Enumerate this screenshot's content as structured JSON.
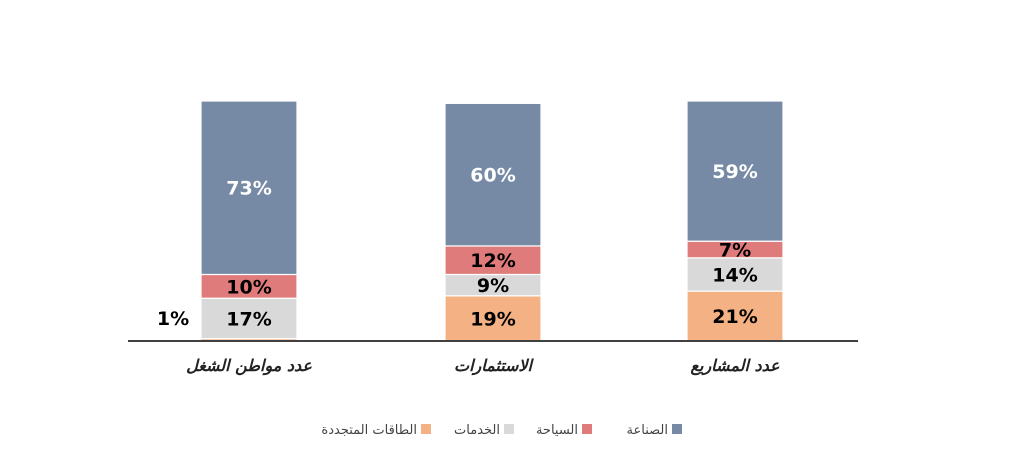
{
  "chart_data": {
    "type": "bar",
    "stacked": true,
    "percent": true,
    "direction": "rtl",
    "categories": [
      "عدد المشاريع",
      "الاستثمارات",
      "عدد مواطن الشغل"
    ],
    "series": [
      {
        "name": "الطاقات المتجددة",
        "color": "#F4B183",
        "label_color": "#000000",
        "values": [
          21,
          19,
          1
        ],
        "labels": [
          "21%",
          "19%",
          "1%"
        ]
      },
      {
        "name": "الخدمات",
        "color": "#D9D9D9",
        "label_color": "#000000",
        "values": [
          14,
          9,
          17
        ],
        "labels": [
          "14%",
          "9%",
          "17%"
        ]
      },
      {
        "name": "السياحة",
        "color": "#E07B7B",
        "label_color": "#000000",
        "values": [
          7,
          12,
          10
        ],
        "labels": [
          "7%",
          "12%",
          "10%"
        ]
      },
      {
        "name": "الصناعة",
        "color": "#768AA6",
        "label_color": "#FFFFFF",
        "values": [
          59,
          60,
          73
        ],
        "labels": [
          "59%",
          "60%",
          "73%"
        ]
      }
    ],
    "ylim": [
      0,
      101
    ],
    "grid": false,
    "legend": "bottom",
    "axis_color": "#404040"
  }
}
